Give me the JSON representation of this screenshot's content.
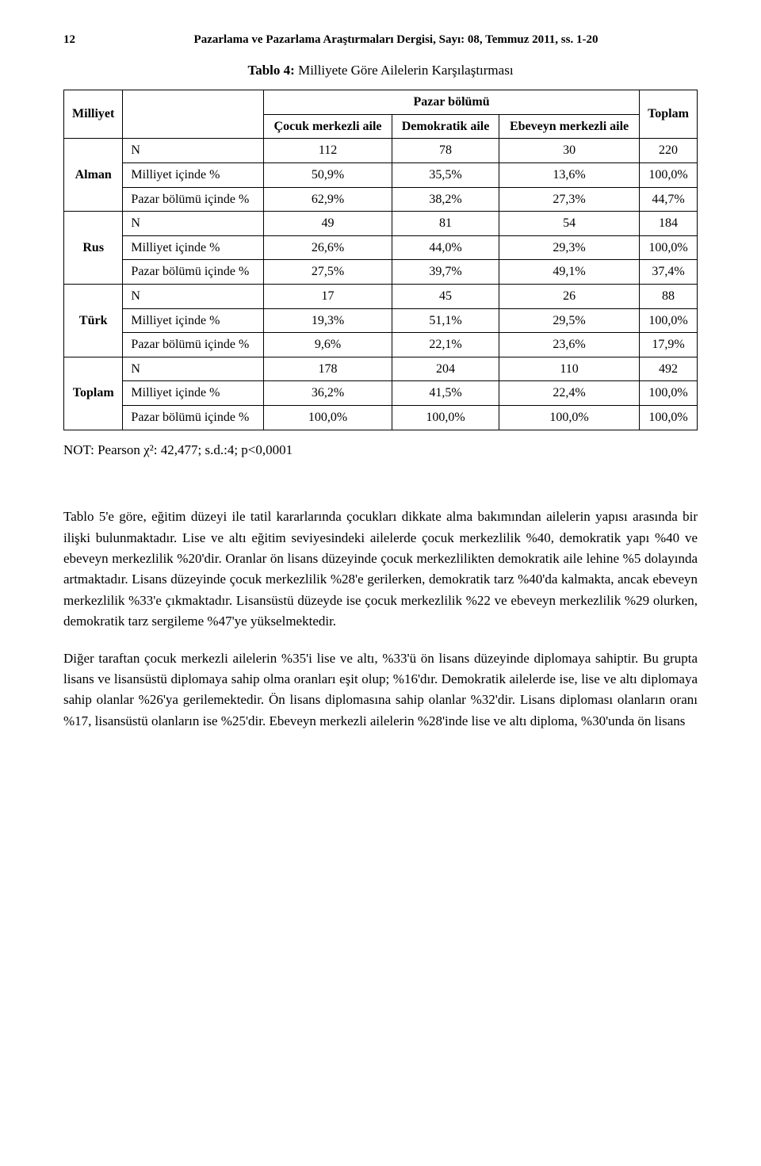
{
  "header": {
    "page_number": "12",
    "journal_line": "Pazarlama ve Pazarlama Araştırmaları Dergisi, Sayı: 08, Temmuz 2011, ss. 1-20"
  },
  "table": {
    "title_label": "Tablo 4:",
    "title_text": " Milliyete Göre Ailelerin Karşılaştırması",
    "col_milliyet": "Milliyet",
    "col_group_header": "Pazar bölümü",
    "col_cocuk": "Çocuk merkezli aile",
    "col_demokratik": "Demokratik aile",
    "col_ebeveyn": "Ebeveyn merkezli aile",
    "col_toplam": "Toplam",
    "row_n": "N",
    "row_milliyet_pct": "Milliyet içinde %",
    "row_pazar_pct": "Pazar bölümü içinde %",
    "groups": {
      "alman": "Alman",
      "rus": "Rus",
      "turk": "Türk",
      "toplam": "Toplam"
    },
    "data": {
      "alman_n": [
        "112",
        "78",
        "30",
        "220"
      ],
      "alman_m": [
        "50,9%",
        "35,5%",
        "13,6%",
        "100,0%"
      ],
      "alman_p": [
        "62,9%",
        "38,2%",
        "27,3%",
        "44,7%"
      ],
      "rus_n": [
        "49",
        "81",
        "54",
        "184"
      ],
      "rus_m": [
        "26,6%",
        "44,0%",
        "29,3%",
        "100,0%"
      ],
      "rus_p": [
        "27,5%",
        "39,7%",
        "49,1%",
        "37,4%"
      ],
      "turk_n": [
        "17",
        "45",
        "26",
        "88"
      ],
      "turk_m": [
        "19,3%",
        "51,1%",
        "29,5%",
        "100,0%"
      ],
      "turk_p": [
        "9,6%",
        "22,1%",
        "23,6%",
        "17,9%"
      ],
      "toplam_n": [
        "178",
        "204",
        "110",
        "492"
      ],
      "toplam_m": [
        "36,2%",
        "41,5%",
        "22,4%",
        "100,0%"
      ],
      "toplam_p": [
        "100,0%",
        "100,0%",
        "100,0%",
        "100,0%"
      ]
    }
  },
  "note": "NOT: Pearson χ²: 42,477; s.d.:4; p<0,0001",
  "paragraphs": {
    "p1": "Tablo 5'e göre, eğitim düzeyi ile tatil kararlarında çocukları dikkate alma bakımından ailelerin yapısı arasında bir ilişki bulunmaktadır. Lise ve altı eğitim seviyesindeki ailelerde çocuk merkezlilik %40, demokratik yapı %40 ve ebeveyn merkezlilik %20'dir. Oranlar ön lisans düzeyinde çocuk merkezlilikten demokratik aile lehine %5 dolayında artmaktadır. Lisans düzeyinde çocuk merkezlilik %28'e gerilerken, demokratik tarz %40'da kalmakta, ancak ebeveyn merkezlilik %33'e çıkmaktadır. Lisansüstü düzeyde ise çocuk merkezlilik %22 ve ebeveyn merkezlilik %29 olurken, demokratik tarz sergileme %47'ye yükselmektedir.",
    "p2": "Diğer taraftan çocuk merkezli ailelerin %35'i lise ve altı, %33'ü ön lisans düzeyinde diplomaya sahiptir. Bu grupta lisans ve lisansüstü diplomaya sahip olma oranları eşit olup; %16'dır. Demokratik ailelerde ise, lise ve altı diplomaya sahip olanlar %26'ya gerilemektedir. Ön lisans diplomasına sahip olanlar %32'dir. Lisans diploması olanların oranı %17, lisansüstü olanların ise %25'dir. Ebeveyn merkezli ailelerin %28'inde lise ve altı diploma, %30'unda ön lisans"
  }
}
